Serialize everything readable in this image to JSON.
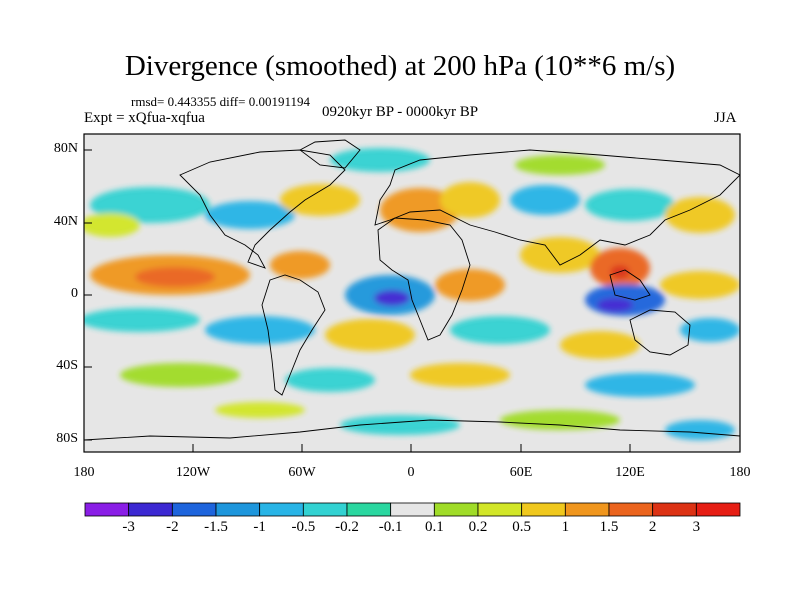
{
  "map": {
    "title": "Divergence (smoothed) at 200 hPa (10**6 m/s)",
    "stats": "rmsd= 0.443355 diff= 0.00191194",
    "expt": "Expt = xQfua-xqfua",
    "period": "0920kyr BP - 0000kyr BP",
    "season": "JJA",
    "lat_ticks": [
      "80N",
      "40N",
      "0",
      "40S",
      "80S"
    ],
    "lon_ticks": [
      "180",
      "120W",
      "60W",
      "0",
      "60E",
      "120E",
      "180"
    ]
  },
  "colorbar": {
    "labels": [
      "-3",
      "-2",
      "-1.5",
      "-1",
      "-0.5",
      "-0.2",
      "-0.1",
      "0.1",
      "0.2",
      "0.5",
      "1",
      "1.5",
      "2",
      "3"
    ],
    "colors": [
      "#8a1ee6",
      "#3c28d2",
      "#1e64dc",
      "#1e96dc",
      "#28b4e6",
      "#32d2d2",
      "#2ad7a0",
      "#e6e6e6",
      "#a0dc28",
      "#d2e628",
      "#f0c81e",
      "#f0961e",
      "#eb641e",
      "#dc3214",
      "#e61e14"
    ]
  }
}
